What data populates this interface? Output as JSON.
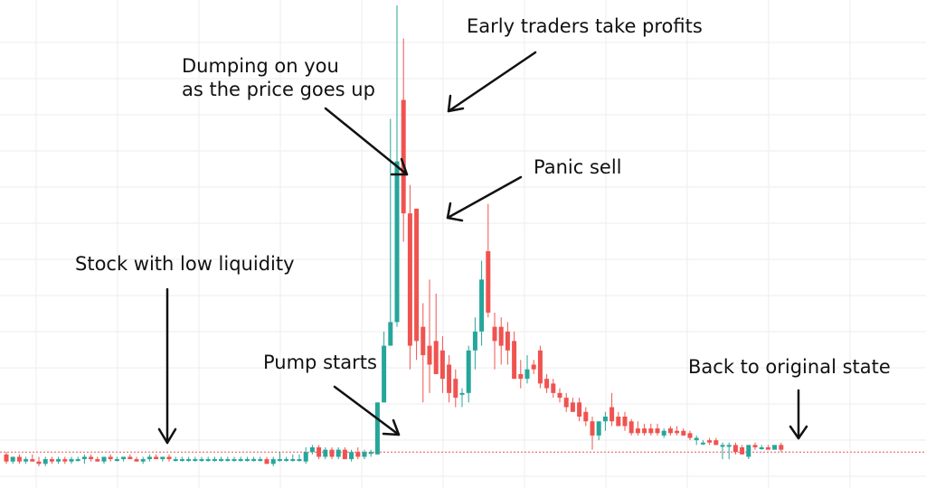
{
  "chart_data": {
    "type": "candlestick",
    "title": "",
    "xlabel": "",
    "ylabel": "",
    "ylim": [
      0,
      100
    ],
    "grid": true,
    "baseline_price": 5.5,
    "colors": {
      "up": "#26a69a",
      "down": "#ef5350",
      "grid": "#eeeeee",
      "baseline": "#ef5350",
      "text": "#111111"
    },
    "candles": [
      {
        "o": 5.0,
        "h": 5.5,
        "l": 3.0,
        "c": 3.5
      },
      {
        "o": 3.5,
        "h": 4.5,
        "l": 3.0,
        "c": 4.5
      },
      {
        "o": 4.5,
        "h": 5.0,
        "l": 3.0,
        "c": 3.5
      },
      {
        "o": 3.5,
        "h": 4.5,
        "l": 3.0,
        "c": 4.0
      },
      {
        "o": 4.0,
        "h": 5.0,
        "l": 3.5,
        "c": 3.5
      },
      {
        "o": 3.5,
        "h": 4.5,
        "l": 2.5,
        "c": 3.0
      },
      {
        "o": 3.0,
        "h": 4.5,
        "l": 2.5,
        "c": 4.0
      },
      {
        "o": 4.0,
        "h": 4.5,
        "l": 3.0,
        "c": 3.5
      },
      {
        "o": 3.5,
        "h": 4.5,
        "l": 3.0,
        "c": 4.0
      },
      {
        "o": 4.0,
        "h": 4.5,
        "l": 3.0,
        "c": 3.5
      },
      {
        "o": 3.5,
        "h": 4.5,
        "l": 3.0,
        "c": 4.0
      },
      {
        "o": 4.0,
        "h": 4.5,
        "l": 3.5,
        "c": 4.0
      },
      {
        "o": 4.0,
        "h": 5.0,
        "l": 3.0,
        "c": 4.5
      },
      {
        "o": 4.5,
        "h": 5.0,
        "l": 3.5,
        "c": 4.0
      },
      {
        "o": 4.0,
        "h": 4.5,
        "l": 3.5,
        "c": 3.5
      },
      {
        "o": 3.5,
        "h": 4.5,
        "l": 3.0,
        "c": 4.5
      },
      {
        "o": 4.5,
        "h": 5.0,
        "l": 3.5,
        "c": 4.0
      },
      {
        "o": 4.0,
        "h": 4.5,
        "l": 3.5,
        "c": 4.0
      },
      {
        "o": 4.0,
        "h": 4.5,
        "l": 3.5,
        "c": 4.5
      },
      {
        "o": 4.5,
        "h": 5.0,
        "l": 4.0,
        "c": 4.0
      },
      {
        "o": 4.0,
        "h": 4.5,
        "l": 3.5,
        "c": 3.5
      },
      {
        "o": 3.5,
        "h": 4.5,
        "l": 3.0,
        "c": 4.0
      },
      {
        "o": 4.0,
        "h": 5.0,
        "l": 3.5,
        "c": 4.5
      },
      {
        "o": 4.5,
        "h": 5.0,
        "l": 4.0,
        "c": 4.0
      },
      {
        "o": 4.0,
        "h": 4.5,
        "l": 3.5,
        "c": 4.5
      },
      {
        "o": 4.5,
        "h": 5.0,
        "l": 3.5,
        "c": 4.0
      },
      {
        "o": 4.0,
        "h": 4.5,
        "l": 3.5,
        "c": 4.0
      },
      {
        "o": 4.0,
        "h": 4.5,
        "l": 3.5,
        "c": 4.0
      },
      {
        "o": 4.0,
        "h": 4.5,
        "l": 3.5,
        "c": 4.0
      },
      {
        "o": 4.0,
        "h": 4.5,
        "l": 3.5,
        "c": 4.0
      },
      {
        "o": 4.0,
        "h": 4.5,
        "l": 3.5,
        "c": 4.0
      },
      {
        "o": 4.0,
        "h": 4.5,
        "l": 3.5,
        "c": 4.0
      },
      {
        "o": 4.0,
        "h": 4.5,
        "l": 3.5,
        "c": 4.0
      },
      {
        "o": 4.0,
        "h": 4.5,
        "l": 3.5,
        "c": 4.0
      },
      {
        "o": 4.0,
        "h": 4.5,
        "l": 3.5,
        "c": 4.0
      },
      {
        "o": 4.0,
        "h": 4.5,
        "l": 3.5,
        "c": 4.0
      },
      {
        "o": 4.0,
        "h": 4.5,
        "l": 3.5,
        "c": 4.0
      },
      {
        "o": 4.0,
        "h": 4.5,
        "l": 3.5,
        "c": 4.0
      },
      {
        "o": 4.0,
        "h": 4.5,
        "l": 3.5,
        "c": 4.0
      },
      {
        "o": 4.0,
        "h": 4.5,
        "l": 3.5,
        "c": 4.0
      },
      {
        "o": 4.0,
        "h": 4.5,
        "l": 3.0,
        "c": 3.0
      },
      {
        "o": 3.0,
        "h": 4.5,
        "l": 2.5,
        "c": 4.0
      },
      {
        "o": 4.0,
        "h": 5.5,
        "l": 3.5,
        "c": 4.0
      },
      {
        "o": 4.0,
        "h": 4.5,
        "l": 3.5,
        "c": 4.0
      },
      {
        "o": 4.0,
        "h": 5.0,
        "l": 3.5,
        "c": 4.0
      },
      {
        "o": 4.0,
        "h": 5.0,
        "l": 3.5,
        "c": 4.0
      },
      {
        "o": 3.5,
        "h": 6.5,
        "l": 3.0,
        "c": 5.5
      },
      {
        "o": 5.5,
        "h": 7.0,
        "l": 5.0,
        "c": 6.5
      },
      {
        "o": 6.5,
        "h": 7.0,
        "l": 4.0,
        "c": 4.5
      },
      {
        "o": 4.5,
        "h": 6.5,
        "l": 4.0,
        "c": 6.0
      },
      {
        "o": 6.0,
        "h": 6.5,
        "l": 4.0,
        "c": 4.5
      },
      {
        "o": 4.5,
        "h": 6.5,
        "l": 4.0,
        "c": 6.0
      },
      {
        "o": 6.0,
        "h": 6.5,
        "l": 4.0,
        "c": 4.0
      },
      {
        "o": 4.0,
        "h": 6.0,
        "l": 3.5,
        "c": 5.5
      },
      {
        "o": 5.5,
        "h": 6.5,
        "l": 4.0,
        "c": 4.5
      },
      {
        "o": 4.5,
        "h": 6.0,
        "l": 4.0,
        "c": 5.5
      },
      {
        "o": 5.5,
        "h": 6.0,
        "l": 4.5,
        "c": 5.5
      },
      {
        "o": 5.0,
        "h": 16.0,
        "l": 5.0,
        "c": 16.0
      },
      {
        "o": 16.0,
        "h": 31.0,
        "l": 16.0,
        "c": 28.0
      },
      {
        "o": 28.0,
        "h": 76.0,
        "l": 28.0,
        "c": 33.0
      },
      {
        "o": 33.0,
        "h": 100.0,
        "l": 32.0,
        "c": 67.0
      },
      {
        "o": 80.0,
        "h": 93.0,
        "l": 50.0,
        "c": 56.0
      },
      {
        "o": 56.0,
        "h": 62.0,
        "l": 23.0,
        "c": 28.0
      },
      {
        "o": 57.0,
        "h": 57.0,
        "l": 25.0,
        "c": 29.0
      },
      {
        "o": 32.0,
        "h": 37.0,
        "l": 16.0,
        "c": 26.0
      },
      {
        "o": 28.0,
        "h": 42.0,
        "l": 18.0,
        "c": 24.0
      },
      {
        "o": 29.0,
        "h": 39.0,
        "l": 22.0,
        "c": 22.0
      },
      {
        "o": 27.0,
        "h": 30.0,
        "l": 18.0,
        "c": 21.0
      },
      {
        "o": 24.0,
        "h": 26.0,
        "l": 16.0,
        "c": 18.0
      },
      {
        "o": 21.0,
        "h": 23.0,
        "l": 15.0,
        "c": 17.0
      },
      {
        "o": 18.0,
        "h": 19.0,
        "l": 15.0,
        "c": 18.0
      },
      {
        "o": 18.0,
        "h": 28.0,
        "l": 16.0,
        "c": 27.0
      },
      {
        "o": 27.0,
        "h": 34.0,
        "l": 23.0,
        "c": 31.0
      },
      {
        "o": 31.0,
        "h": 46.0,
        "l": 28.0,
        "c": 42.0
      },
      {
        "o": 48.0,
        "h": 58.0,
        "l": 34.0,
        "c": 35.0
      },
      {
        "o": 32.0,
        "h": 35.0,
        "l": 23.0,
        "c": 29.0
      },
      {
        "o": 32.0,
        "h": 34.0,
        "l": 24.0,
        "c": 28.0
      },
      {
        "o": 31.0,
        "h": 33.0,
        "l": 24.0,
        "c": 27.0
      },
      {
        "o": 29.0,
        "h": 31.0,
        "l": 21.0,
        "c": 21.0
      },
      {
        "o": 22.0,
        "h": 25.0,
        "l": 19.0,
        "c": 21.0
      },
      {
        "o": 21.0,
        "h": 26.0,
        "l": 20.0,
        "c": 23.0
      },
      {
        "o": 24.0,
        "h": 25.0,
        "l": 22.0,
        "c": 23.0
      },
      {
        "o": 27.0,
        "h": 28.0,
        "l": 19.0,
        "c": 20.0
      },
      {
        "o": 21.0,
        "h": 22.0,
        "l": 18.0,
        "c": 19.0
      },
      {
        "o": 20.0,
        "h": 21.0,
        "l": 17.0,
        "c": 18.0
      },
      {
        "o": 18.0,
        "h": 19.0,
        "l": 16.0,
        "c": 17.0
      },
      {
        "o": 17.0,
        "h": 18.0,
        "l": 14.0,
        "c": 15.0
      },
      {
        "o": 16.0,
        "h": 17.0,
        "l": 14.0,
        "c": 14.0
      },
      {
        "o": 16.0,
        "h": 17.0,
        "l": 12.0,
        "c": 13.0
      },
      {
        "o": 14.0,
        "h": 15.0,
        "l": 11.0,
        "c": 12.0
      },
      {
        "o": 12.0,
        "h": 13.0,
        "l": 6.0,
        "c": 9.0
      },
      {
        "o": 9.0,
        "h": 12.0,
        "l": 8.0,
        "c": 12.0
      },
      {
        "o": 12.0,
        "h": 14.0,
        "l": 10.0,
        "c": 13.0
      },
      {
        "o": 15.0,
        "h": 18.0,
        "l": 11.0,
        "c": 12.0
      },
      {
        "o": 13.0,
        "h": 14.0,
        "l": 11.0,
        "c": 11.0
      },
      {
        "o": 13.0,
        "h": 14.0,
        "l": 10.0,
        "c": 11.0
      },
      {
        "o": 12.0,
        "h": 12.5,
        "l": 9.0,
        "c": 9.5
      },
      {
        "o": 10.5,
        "h": 12.0,
        "l": 9.0,
        "c": 9.5
      },
      {
        "o": 10.5,
        "h": 11.5,
        "l": 9.0,
        "c": 9.5
      },
      {
        "o": 10.5,
        "h": 11.5,
        "l": 9.0,
        "c": 9.5
      },
      {
        "o": 10.5,
        "h": 11.5,
        "l": 9.0,
        "c": 9.5
      },
      {
        "o": 9.0,
        "h": 10.5,
        "l": 8.5,
        "c": 10.0
      },
      {
        "o": 10.5,
        "h": 11.0,
        "l": 9.0,
        "c": 9.5
      },
      {
        "o": 10.0,
        "h": 11.0,
        "l": 9.0,
        "c": 9.5
      },
      {
        "o": 10.0,
        "h": 10.5,
        "l": 9.0,
        "c": 9.0
      },
      {
        "o": 9.5,
        "h": 10.0,
        "l": 8.0,
        "c": 8.5
      },
      {
        "o": 8.0,
        "h": 9.0,
        "l": 7.0,
        "c": 8.5
      },
      {
        "o": 7.5,
        "h": 8.0,
        "l": 7.0,
        "c": 7.5
      },
      {
        "o": 8.0,
        "h": 8.5,
        "l": 7.0,
        "c": 7.5
      },
      {
        "o": 8.0,
        "h": 8.5,
        "l": 7.0,
        "c": 7.0
      },
      {
        "o": 7.0,
        "h": 7.5,
        "l": 4.0,
        "c": 7.0
      },
      {
        "o": 7.0,
        "h": 7.5,
        "l": 4.0,
        "c": 7.0
      },
      {
        "o": 7.0,
        "h": 7.5,
        "l": 5.0,
        "c": 5.5
      },
      {
        "o": 6.5,
        "h": 7.0,
        "l": 5.0,
        "c": 5.0
      },
      {
        "o": 4.5,
        "h": 7.0,
        "l": 4.0,
        "c": 7.0
      },
      {
        "o": 7.0,
        "h": 7.5,
        "l": 6.0,
        "c": 6.5
      },
      {
        "o": 6.5,
        "h": 7.0,
        "l": 6.0,
        "c": 6.5
      },
      {
        "o": 6.5,
        "h": 7.0,
        "l": 6.0,
        "c": 6.0
      },
      {
        "o": 6.0,
        "h": 7.0,
        "l": 6.0,
        "c": 7.0
      },
      {
        "o": 7.0,
        "h": 7.5,
        "l": 5.5,
        "c": 6.0
      }
    ],
    "annotations": [
      {
        "text": "Stock with low liquidity"
      },
      {
        "text": "Pump starts"
      },
      {
        "text": "Dumping on you",
        "text2": "as the price goes up"
      },
      {
        "text": "Early traders take profits"
      },
      {
        "text": "Panic sell"
      },
      {
        "text": "Back to original state"
      }
    ]
  }
}
